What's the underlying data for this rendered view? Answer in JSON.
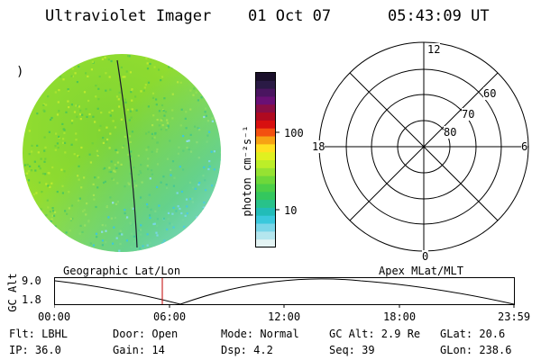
{
  "header": {
    "title": "Ultraviolet Imager",
    "date": "01 Oct 07",
    "time": "05:43:09 UT"
  },
  "colorbar": {
    "unit_label": "photon cm⁻²s⁻¹",
    "ticks": [
      "100",
      "10"
    ],
    "colors": [
      "#1a0f2a",
      "#2a1a45",
      "#4a1560",
      "#6a1075",
      "#8a0e45",
      "#b00a20",
      "#d81010",
      "#f35010",
      "#f7a214",
      "#ffe020",
      "#e0f020",
      "#bcee28",
      "#96e232",
      "#6ed83a",
      "#4ccf48",
      "#34c75e",
      "#28c28a",
      "#22bcb8",
      "#3ac8dc",
      "#7ad6e8",
      "#b4e6ee",
      "#e4f4f4"
    ]
  },
  "image_panel": {
    "marker": ")",
    "fill_color": "#88d630",
    "fill_color_alt": "#bcea2e",
    "fill_color_cyan": "#3ec8d8"
  },
  "polar_plot": {
    "labels": {
      "top": "12",
      "bottom": "0",
      "left": "18",
      "right": "6"
    },
    "ring_labels": [
      "60",
      "70",
      "80"
    ]
  },
  "timeline": {
    "left_label": "Geographic Lat/Lon",
    "right_label": "Apex MLat/MLT",
    "axis_label": "GC Alt",
    "y_ticks": [
      "9.0",
      "1.8"
    ],
    "x_ticks": [
      "00:00",
      "06:00",
      "12:00",
      "18:00",
      "23:59"
    ],
    "cursor_color": "#c00000"
  },
  "info": {
    "flt": "Flt: LBHL",
    "door": "Door: Open",
    "mode": "Mode: Normal",
    "gc_alt": "GC Alt: 2.9 Re",
    "glat": "GLat:  20.6",
    "ip": "IP: 36.0",
    "gain": "Gain: 14",
    "dsp": "Dsp:    4.2",
    "seq": "Seq: 39",
    "glon": "GLon: 238.6"
  }
}
